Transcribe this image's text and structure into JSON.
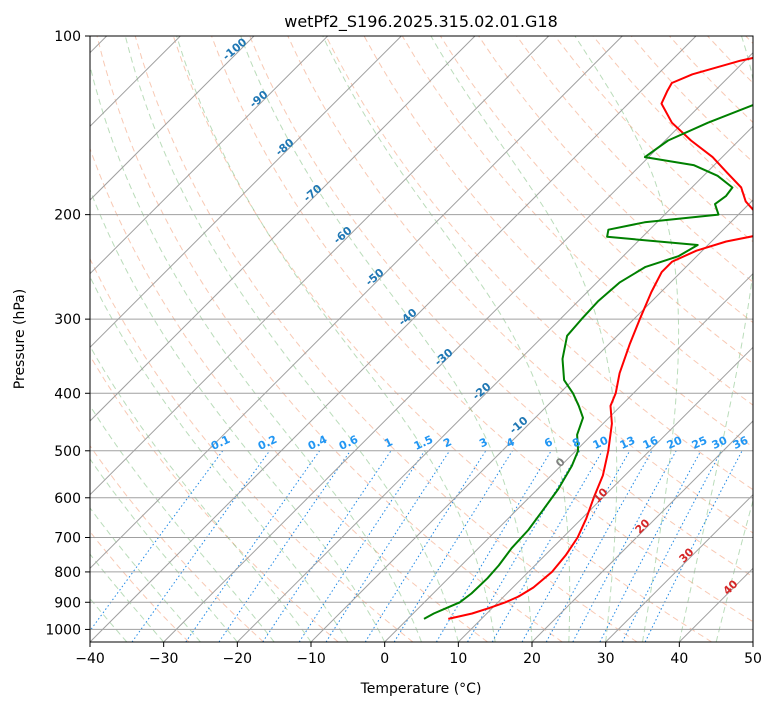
{
  "chart_data": {
    "type": "line",
    "title": "wetPf2_S196.2025.315.02.01.G18",
    "xlabel": "Temperature (°C)",
    "ylabel": "Pressure (hPa)",
    "xlim": [
      -40,
      50
    ],
    "ylim": [
      1050,
      100
    ],
    "yscale": "log",
    "grid": true,
    "x_ticks": [
      -40,
      -30,
      -20,
      -10,
      0,
      10,
      20,
      30,
      40,
      50
    ],
    "y_ticks": [
      1000,
      900,
      800,
      700,
      600,
      500,
      400,
      300,
      200,
      100
    ],
    "series": [
      {
        "name": "",
        "color": "#ff0000",
        "pressure": [
          960,
          940,
          920,
          900,
          880,
          850,
          800,
          750,
          700,
          650,
          600,
          550,
          500,
          450,
          420,
          400,
          370,
          330,
          300,
          270,
          250,
          240,
          230,
          222,
          215,
          208,
          200,
          190,
          180,
          170,
          160,
          150,
          140,
          130,
          124,
          120,
          116,
          110,
          105,
          100
        ],
        "temperature": [
          5.5,
          8,
          9.6,
          11,
          12,
          12.8,
          13.2,
          12.8,
          12,
          10.6,
          8.8,
          7,
          4.4,
          1.2,
          -1.4,
          -2.4,
          -4.6,
          -7.2,
          -9.2,
          -11.3,
          -12.6,
          -12.6,
          -10.8,
          -8,
          -3.5,
          -5.2,
          -7.4,
          -10.8,
          -13.3,
          -17.2,
          -21.3,
          -26.5,
          -31.5,
          -35.5,
          -36.4,
          -36.9,
          -35.3,
          -30.6,
          -24.7,
          -15.8
        ]
      },
      {
        "name": "",
        "color": "#008000",
        "pressure": [
          960,
          940,
          920,
          900,
          870,
          820,
          780,
          730,
          680,
          630,
          580,
          530,
          500,
          470,
          440,
          420,
          400,
          380,
          350,
          320,
          300,
          280,
          260,
          245,
          235,
          225,
          218,
          212,
          206,
          200,
          192,
          186,
          180,
          172,
          165,
          160,
          150,
          140,
          130,
          120,
          110,
          105,
          100
        ],
        "temperature": [
          2.2,
          2.8,
          3.8,
          4.8,
          5.2,
          5.3,
          5.1,
          4.5,
          4.3,
          3.6,
          2.8,
          1.5,
          0.3,
          -2,
          -3.5,
          -5.7,
          -8.2,
          -11.2,
          -14.3,
          -16.8,
          -17.1,
          -17.3,
          -16.9,
          -15.5,
          -12.5,
          -11.4,
          -24.8,
          -25.6,
          -21.7,
          -12.7,
          -14.6,
          -14.2,
          -14.5,
          -18.1,
          -22.8,
          -30.5,
          -29.6,
          -26.6,
          -22.6,
          -19,
          -15.4,
          -13,
          -8
        ]
      }
    ],
    "dry_adiabat_labels": [
      "-100",
      "-90",
      "-80",
      "-70",
      "-60",
      "-50",
      "-40",
      "-30",
      "-20",
      "-10"
    ],
    "mixing_ratio_labels": [
      "0.1",
      "0.2",
      "0.4",
      "0.6",
      "1",
      "1.5",
      "2",
      "3",
      "4",
      "6",
      "8",
      "10",
      "13",
      "16",
      "20",
      "25",
      "30",
      "36"
    ],
    "moist_adiabat_labels": [
      "0",
      "10",
      "20",
      "30",
      "40"
    ]
  }
}
